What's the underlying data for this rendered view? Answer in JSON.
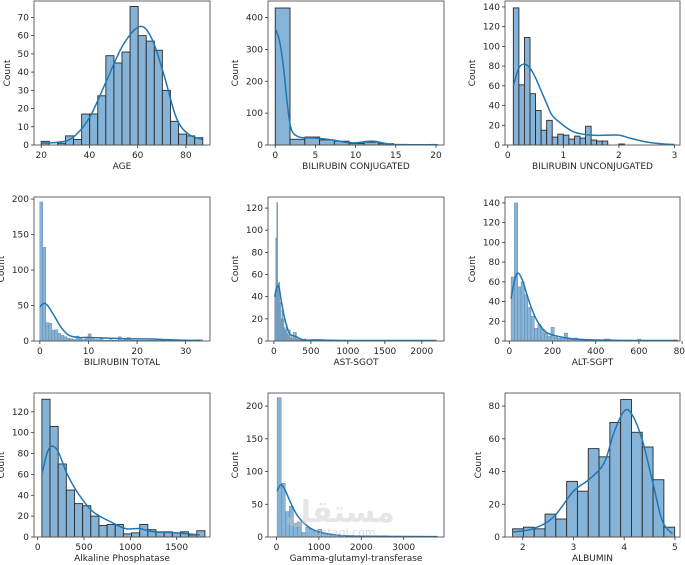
{
  "watermark": {
    "arabic": "مستقل",
    "latin": "mostaql.com"
  },
  "chart_data": [
    {
      "type": "bar",
      "title": "",
      "xlabel": "AGE",
      "ylabel": "Count",
      "xlim": [
        17,
        90
      ],
      "ylim": [
        0,
        79
      ],
      "xticks": [
        20,
        40,
        60,
        80
      ],
      "yticks": [
        0,
        10,
        20,
        30,
        40,
        50,
        60,
        70
      ],
      "bin_start": 20,
      "bin_width": 3.35,
      "values": [
        2,
        0,
        1,
        5,
        3,
        17,
        17,
        27,
        49,
        45,
        51,
        76,
        60,
        57,
        52,
        30,
        13,
        6,
        5,
        4
      ],
      "kde": [
        [
          20,
          1
        ],
        [
          27,
          1.5
        ],
        [
          33,
          4
        ],
        [
          40,
          15
        ],
        [
          47,
          35
        ],
        [
          54,
          55
        ],
        [
          61,
          65
        ],
        [
          66,
          58
        ],
        [
          71,
          38
        ],
        [
          76,
          15
        ],
        [
          81,
          6
        ],
        [
          87,
          3
        ]
      ]
    },
    {
      "type": "bar",
      "title": "",
      "xlabel": "BILIRUBIN CONJUGATED",
      "ylabel": "Count",
      "xlim": [
        -0.9,
        21
      ],
      "ylim": [
        0,
        452
      ],
      "xticks": [
        0,
        5,
        10,
        15,
        20
      ],
      "yticks": [
        0,
        100,
        200,
        300,
        400
      ],
      "bin_start": 0,
      "bin_width": 1.84,
      "values": [
        430,
        18,
        25,
        16,
        12,
        5,
        9,
        4,
        2,
        1,
        1
      ],
      "kde": [
        [
          0,
          365
        ],
        [
          0.5,
          330
        ],
        [
          1,
          250
        ],
        [
          1.5,
          130
        ],
        [
          2,
          50
        ],
        [
          3,
          25
        ],
        [
          5,
          22
        ],
        [
          7,
          16
        ],
        [
          9,
          8
        ],
        [
          10,
          7
        ],
        [
          12,
          12
        ],
        [
          13.5,
          6
        ],
        [
          15,
          1
        ],
        [
          20,
          1
        ]
      ]
    },
    {
      "type": "bar",
      "title": "",
      "xlabel": "BILIRUBIN UNCONJUGATED",
      "ylabel": "Count",
      "xlim": [
        -0.05,
        3.1
      ],
      "ylim": [
        0,
        146
      ],
      "xticks": [
        0,
        1,
        2,
        3
      ],
      "yticks": [
        0,
        20,
        40,
        60,
        80,
        100,
        120,
        140
      ],
      "bin_start": 0.1,
      "bin_width": 0.1,
      "values": [
        139,
        61,
        109,
        52,
        35,
        15,
        25,
        8,
        11,
        10,
        6,
        9,
        7,
        19,
        5,
        4,
        4,
        0,
        0,
        1
      ],
      "kde": [
        [
          0.1,
          60
        ],
        [
          0.2,
          78
        ],
        [
          0.3,
          82
        ],
        [
          0.4,
          78
        ],
        [
          0.5,
          68
        ],
        [
          0.6,
          55
        ],
        [
          0.7,
          42
        ],
        [
          0.8,
          30
        ],
        [
          1.0,
          20
        ],
        [
          1.2,
          13
        ],
        [
          1.5,
          10
        ],
        [
          1.8,
          10
        ],
        [
          2.0,
          10
        ],
        [
          2.2,
          7
        ],
        [
          2.5,
          3
        ],
        [
          2.8,
          1
        ],
        [
          3.0,
          0.5
        ]
      ]
    },
    {
      "type": "bar",
      "title": "",
      "xlabel": "BILIRUBIN TOTAL",
      "ylabel": "Count",
      "xlim": [
        -1.2,
        35
      ],
      "ylim": [
        0,
        203
      ],
      "xticks": [
        0,
        10,
        20,
        30
      ],
      "yticks": [
        0,
        50,
        100,
        150,
        200
      ],
      "bin_start": 0,
      "bin_width": 0.62,
      "values": [
        196,
        132,
        26,
        25,
        15,
        16,
        11,
        8,
        6,
        4,
        3,
        2,
        7,
        3,
        2,
        4,
        10,
        3,
        2,
        2,
        3,
        1,
        1,
        2,
        1,
        1,
        6,
        1,
        2,
        5,
        1,
        1,
        1,
        1,
        1,
        1,
        1,
        1,
        1,
        3,
        1,
        1,
        0,
        1,
        0,
        0,
        0,
        0,
        0,
        0,
        0,
        0,
        0,
        2
      ],
      "kde": [
        [
          0,
          48
        ],
        [
          0.8,
          53
        ],
        [
          1.6,
          50
        ],
        [
          3,
          35
        ],
        [
          4.5,
          18
        ],
        [
          6,
          8
        ],
        [
          8,
          5
        ],
        [
          10,
          5
        ],
        [
          14,
          4
        ],
        [
          18,
          3
        ],
        [
          22,
          3
        ],
        [
          26,
          2
        ],
        [
          30,
          1
        ],
        [
          33,
          1
        ]
      ]
    },
    {
      "type": "bar",
      "title": "",
      "xlabel": "AST-SGOT",
      "ylabel": "Count",
      "xlim": [
        -80,
        2300
      ],
      "ylim": [
        0,
        130
      ],
      "xticks": [
        0,
        500,
        1000,
        1500,
        2000
      ],
      "yticks": [
        0,
        20,
        40,
        60,
        80,
        100,
        120
      ],
      "bin_start": 10,
      "bin_width": 14,
      "values": [
        40,
        93,
        125,
        52,
        53,
        35,
        20,
        28,
        20,
        12,
        10,
        15,
        7,
        5,
        10,
        3,
        4,
        2,
        8,
        3,
        8,
        2,
        2,
        1,
        1,
        2,
        1,
        0,
        1,
        2
      ],
      "kde": [
        [
          10,
          40
        ],
        [
          40,
          49
        ],
        [
          70,
          48
        ],
        [
          100,
          36
        ],
        [
          140,
          22
        ],
        [
          180,
          12
        ],
        [
          220,
          6
        ],
        [
          300,
          4
        ],
        [
          400,
          1
        ],
        [
          600,
          1
        ],
        [
          1000,
          0.5
        ],
        [
          2200,
          0.5
        ]
      ]
    },
    {
      "type": "bar",
      "title": "",
      "xlabel": "ALT-SGPT",
      "ylabel": "Count",
      "xlim": [
        -20,
        790
      ],
      "ylim": [
        0,
        146
      ],
      "xticks": [
        0,
        200,
        400,
        600,
        800
      ],
      "yticks": [
        0,
        20,
        40,
        60,
        80,
        100,
        120,
        140
      ],
      "bin_start": 8,
      "bin_width": 15.4,
      "values": [
        65,
        140,
        55,
        60,
        47,
        34,
        25,
        13,
        17,
        12,
        8,
        5,
        14,
        4,
        3,
        4,
        8,
        2,
        2,
        3,
        2,
        1,
        1,
        0,
        1,
        0,
        0,
        0,
        2,
        2,
        0,
        0,
        0,
        0,
        0,
        0,
        0,
        0,
        2,
        0,
        0,
        0,
        0,
        0,
        0,
        0,
        0,
        0,
        0,
        1
      ],
      "kde": [
        [
          8,
          43
        ],
        [
          25,
          62
        ],
        [
          40,
          69
        ],
        [
          60,
          62
        ],
        [
          80,
          48
        ],
        [
          100,
          35
        ],
        [
          130,
          20
        ],
        [
          170,
          9
        ],
        [
          220,
          5
        ],
        [
          300,
          2
        ],
        [
          400,
          1
        ],
        [
          600,
          0.5
        ],
        [
          780,
          0.5
        ]
      ]
    },
    {
      "type": "bar",
      "title": "",
      "xlabel": "Alkaline Phosphatase",
      "ylabel": "Count",
      "xlim": [
        -40,
        1860
      ],
      "ylim": [
        0,
        138
      ],
      "xticks": [
        0,
        500,
        1000,
        1500
      ],
      "yticks": [
        0,
        20,
        40,
        60,
        80,
        100,
        120
      ],
      "bin_start": 45,
      "bin_width": 88,
      "values": [
        132,
        106,
        70,
        45,
        32,
        30,
        20,
        11,
        12,
        12,
        3,
        4,
        12,
        7,
        5,
        5,
        4,
        5,
        2,
        6
      ],
      "kde": [
        [
          45,
          60
        ],
        [
          100,
          80
        ],
        [
          150,
          87
        ],
        [
          220,
          82
        ],
        [
          320,
          60
        ],
        [
          450,
          40
        ],
        [
          600,
          24
        ],
        [
          800,
          14
        ],
        [
          950,
          8
        ],
        [
          1100,
          8
        ],
        [
          1250,
          5
        ],
        [
          1500,
          4
        ],
        [
          1750,
          2
        ]
      ]
    },
    {
      "type": "bar",
      "title": "",
      "xlabel": "Gamma-glutamyl-transferase",
      "ylabel": "Count",
      "xlim": [
        -200,
        3950
      ],
      "ylim": [
        0,
        220
      ],
      "xticks": [
        0,
        1000,
        2000,
        3000
      ],
      "yticks": [
        0,
        50,
        100,
        150,
        200
      ],
      "bin_start": 15,
      "bin_width": 96,
      "values": [
        213,
        82,
        39,
        47,
        21,
        23,
        7,
        15,
        11,
        9,
        12,
        7,
        5,
        3,
        3,
        2,
        2,
        1,
        1,
        1,
        1,
        0,
        1,
        0,
        0,
        1,
        2,
        0,
        0,
        0,
        0,
        0,
        0,
        0,
        0,
        0,
        0,
        0,
        1
      ],
      "kde": [
        [
          15,
          70
        ],
        [
          100,
          80
        ],
        [
          200,
          72
        ],
        [
          350,
          50
        ],
        [
          500,
          32
        ],
        [
          700,
          18
        ],
        [
          900,
          10
        ],
        [
          1200,
          5
        ],
        [
          1600,
          2
        ],
        [
          2500,
          1
        ],
        [
          3800,
          0.5
        ]
      ]
    },
    {
      "type": "bar",
      "title": "",
      "xlabel": "ALBUMIN",
      "ylabel": "Count",
      "xlim": [
        1.65,
        5.1
      ],
      "ylim": [
        0,
        88
      ],
      "xticks": [
        2,
        3,
        4,
        5
      ],
      "yticks": [
        0,
        20,
        40,
        60,
        80
      ],
      "bin_start": 1.8,
      "bin_width": 0.213,
      "values": [
        5,
        6,
        5,
        14,
        11,
        34,
        28,
        54,
        49,
        70,
        84,
        64,
        55,
        35,
        6
      ],
      "kde": [
        [
          1.8,
          3
        ],
        [
          2.2,
          5
        ],
        [
          2.6,
          12
        ],
        [
          3.0,
          28
        ],
        [
          3.3,
          35
        ],
        [
          3.6,
          45
        ],
        [
          3.8,
          64
        ],
        [
          4.0,
          77
        ],
        [
          4.15,
          75
        ],
        [
          4.35,
          60
        ],
        [
          4.55,
          35
        ],
        [
          4.75,
          10
        ],
        [
          4.95,
          2
        ]
      ]
    }
  ]
}
